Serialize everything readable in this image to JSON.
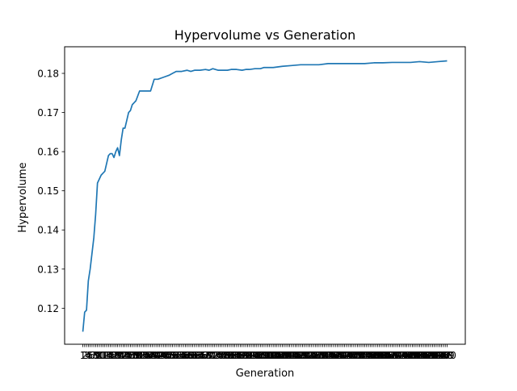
{
  "chart_data": {
    "type": "line",
    "title": "Hypervolume vs Generation",
    "xlabel": "Generation",
    "ylabel": "Hypervolume",
    "y_ticks": [
      0.12,
      0.13,
      0.14,
      0.15,
      0.16,
      0.17,
      0.18
    ],
    "y_tick_labels": [
      "0.12",
      "0.13",
      "0.14",
      "0.15",
      "0.16",
      "0.17",
      "0.18"
    ],
    "ylim": [
      0.1108,
      0.1868
    ],
    "x_range": [
      1,
      200
    ],
    "xlim": [
      -8.95,
      209.95
    ],
    "x_tick_count": 200,
    "x_ticks_note": "x tick labels overlap into an illegible dark band",
    "grid": false,
    "legend": "none",
    "line_color": "#1f77b4",
    "series": [
      {
        "x": [
          1,
          2,
          3,
          4,
          5,
          6,
          7,
          8,
          9,
          10,
          11,
          12,
          13,
          14,
          15,
          16,
          17,
          18,
          19,
          20,
          21,
          22,
          23,
          24,
          25,
          26,
          27,
          28,
          29,
          30,
          32,
          34,
          36,
          38,
          40,
          42,
          45,
          48,
          50,
          52,
          55,
          58,
          60,
          62,
          65,
          68,
          70,
          72,
          75,
          78,
          80,
          82,
          85,
          88,
          90,
          92,
          95,
          98,
          100,
          105,
          110,
          115,
          120,
          125,
          130,
          135,
          140,
          145,
          150,
          155,
          160,
          165,
          170,
          175,
          180,
          185,
          190,
          195,
          200
        ],
        "values": [
          0.114,
          0.119,
          0.1195,
          0.127,
          0.13,
          0.134,
          0.138,
          0.144,
          0.152,
          0.153,
          0.154,
          0.1545,
          0.155,
          0.157,
          0.159,
          0.1595,
          0.1595,
          0.1585,
          0.16,
          0.161,
          0.159,
          0.163,
          0.166,
          0.166,
          0.168,
          0.17,
          0.1705,
          0.172,
          0.1725,
          0.173,
          0.1755,
          0.1755,
          0.1755,
          0.1755,
          0.1785,
          0.1785,
          0.179,
          0.1795,
          0.18,
          0.1805,
          0.1805,
          0.1808,
          0.1805,
          0.1808,
          0.1808,
          0.181,
          0.1808,
          0.1812,
          0.1808,
          0.1808,
          0.1808,
          0.181,
          0.181,
          0.1808,
          0.181,
          0.181,
          0.1812,
          0.1812,
          0.1815,
          0.1815,
          0.1818,
          0.182,
          0.1822,
          0.1822,
          0.1822,
          0.1825,
          0.1825,
          0.1825,
          0.1825,
          0.1825,
          0.1827,
          0.1827,
          0.1828,
          0.1828,
          0.1828,
          0.183,
          0.1828,
          0.183,
          0.1832
        ]
      }
    ]
  }
}
